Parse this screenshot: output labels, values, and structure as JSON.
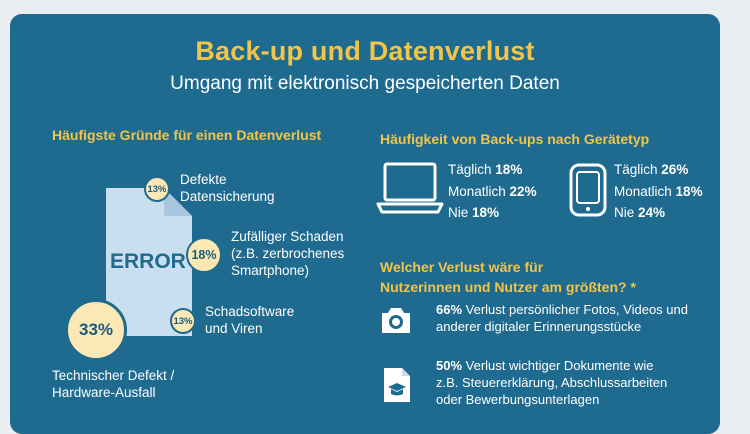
{
  "header": {
    "title": "Back-up und Datenverlust",
    "subtitle": "Umgang mit elektronisch gespeicherten Daten"
  },
  "left_section": {
    "heading": "Häufigste Gründe für einen Datenverlust",
    "error_text": "ERROR"
  },
  "right_top": {
    "heading": "Häufigkeit von Back-ups nach Gerätetyp"
  },
  "right_bottom": {
    "heading_line1": "Welcher Verlust wäre für",
    "heading_line2": "Nutzerinnen und Nutzer am größten? *",
    "items": [
      {
        "icon": "camera-icon",
        "percent": "66%",
        "line1": " Verlust persönlicher Fotos, Videos und",
        "line2": "anderer digitaler Erinnerungsstücke"
      },
      {
        "icon": "document-graduation-icon",
        "percent": "50%",
        "line1": " Verlust wichtiger Dokumente wie",
        "line2": "z.B. Steuererklärung, Abschlussarbeiten",
        "line3": "oder Bewerbungsunterlagen"
      }
    ]
  },
  "colors": {
    "background": "#1f6a8f",
    "accent": "#f2c548",
    "badge": "#fbe8b4",
    "document": "#c9dff0"
  },
  "chart_data": [
    {
      "type": "bar",
      "title": "Häufigste Gründe für einen Datenverlust",
      "categories": [
        "Technischer Defekt / Hardware-Ausfall",
        "Defekte Datensicherung",
        "Zufälliger Schaden (z.B. zerbrochenes Smartphone)",
        "Schadsoftware und Viren"
      ],
      "values": [
        33,
        13,
        18,
        13
      ],
      "labels": [
        "33%",
        "13%",
        "18%",
        "13%"
      ],
      "category_lines": [
        [
          "Technischer Defekt /",
          "Hardware-Ausfall"
        ],
        [
          "Defekte",
          "Datensicherung"
        ],
        [
          "Zufälliger Schaden",
          "(z.B. zerbrochenes",
          "Smartphone)"
        ],
        [
          "Schadsoftware",
          "und Viren"
        ]
      ]
    },
    {
      "type": "table",
      "title": "Häufigkeit von Back-ups nach Gerätetyp",
      "devices": [
        {
          "icon": "laptop-icon",
          "rows": [
            {
              "label": "Täglich",
              "value": 18,
              "text": "18%"
            },
            {
              "label": "Monatlich",
              "value": 22,
              "text": "22%"
            },
            {
              "label": "Nie",
              "value": 18,
              "text": "18%"
            }
          ]
        },
        {
          "icon": "smartphone-icon",
          "rows": [
            {
              "label": "Täglich",
              "value": 26,
              "text": "26%"
            },
            {
              "label": "Monatlich",
              "value": 18,
              "text": "18%"
            },
            {
              "label": "Nie",
              "value": 24,
              "text": "24%"
            }
          ]
        }
      ]
    }
  ]
}
